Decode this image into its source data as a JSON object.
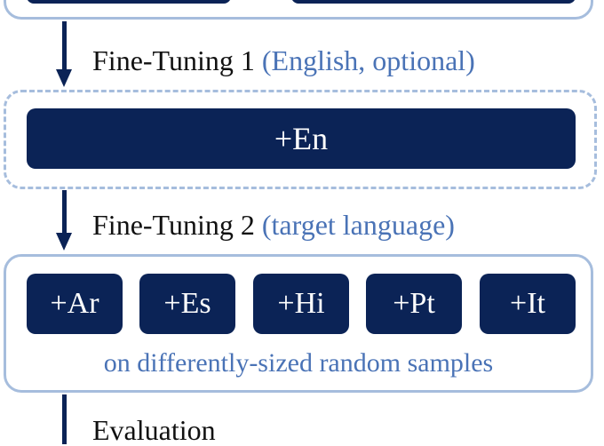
{
  "diagram": {
    "steps": [
      {
        "label": "Fine-Tuning 1",
        "note": "(English, optional)"
      },
      {
        "label": "Fine-Tuning 2",
        "note": "(target language)"
      },
      {
        "label": "Evaluation",
        "note": ""
      }
    ],
    "english_block": "+En",
    "language_blocks": [
      "+Ar",
      "+Es",
      "+Hi",
      "+Pt",
      "+It"
    ],
    "caption": "on differently-sized random samples"
  },
  "colors": {
    "block_fill": "#0b2356",
    "frame_stroke": "#a6bddd",
    "note_text": "#4a73b6"
  }
}
